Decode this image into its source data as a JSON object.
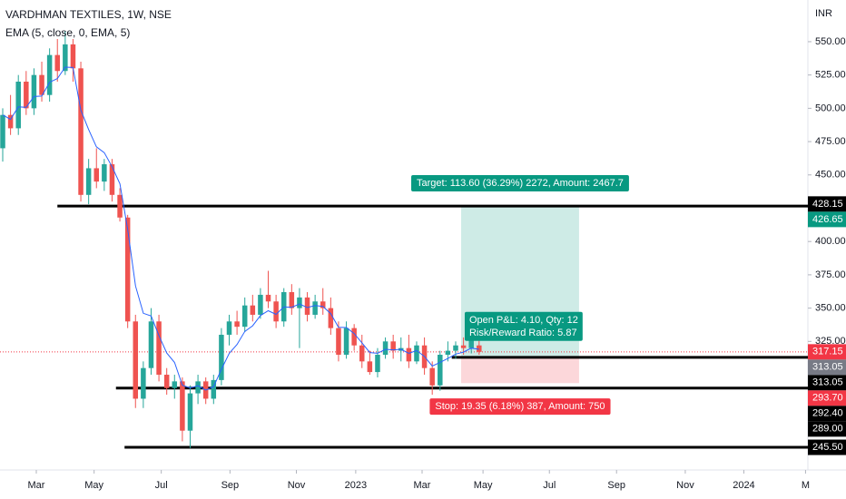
{
  "chart_data": {
    "type": "candlestick",
    "title": "VARDHMAN TEXTILES, 1W, NSE",
    "indicator": "EMA (5, close, 0, EMA, 5)",
    "currency": "INR",
    "up_color": "#26a69a",
    "down_color": "#ef5350",
    "ema_color": "#2962ff",
    "candles": [
      [
        470,
        500,
        460,
        495
      ],
      [
        495,
        510,
        480,
        485
      ],
      [
        485,
        525,
        480,
        520
      ],
      [
        520,
        528,
        495,
        500
      ],
      [
        500,
        530,
        495,
        525
      ],
      [
        525,
        535,
        505,
        510
      ],
      [
        510,
        545,
        505,
        540
      ],
      [
        540,
        552,
        520,
        528
      ],
      [
        528,
        558,
        525,
        548
      ],
      [
        548,
        552,
        520,
        530
      ],
      [
        530,
        535,
        430,
        435
      ],
      [
        435,
        462,
        428,
        455
      ],
      [
        455,
        470,
        440,
        445
      ],
      [
        445,
        462,
        438,
        458
      ],
      [
        458,
        462,
        430,
        435
      ],
      [
        435,
        440,
        415,
        418
      ],
      [
        418,
        420,
        335,
        340
      ],
      [
        340,
        345,
        275,
        282
      ],
      [
        282,
        310,
        275,
        305
      ],
      [
        305,
        350,
        300,
        340
      ],
      [
        340,
        345,
        295,
        300
      ],
      [
        300,
        305,
        285,
        290
      ],
      [
        290,
        300,
        282,
        295
      ],
      [
        295,
        298,
        250,
        258
      ],
      [
        258,
        292,
        245,
        286
      ],
      [
        286,
        300,
        278,
        295
      ],
      [
        295,
        298,
        278,
        282
      ],
      [
        282,
        300,
        278,
        296
      ],
      [
        296,
        335,
        292,
        330
      ],
      [
        330,
        345,
        322,
        340
      ],
      [
        340,
        348,
        330,
        336
      ],
      [
        336,
        358,
        332,
        352
      ],
      [
        352,
        360,
        340,
        345
      ],
      [
        345,
        365,
        342,
        360
      ],
      [
        360,
        378,
        350,
        355
      ],
      [
        355,
        360,
        335,
        340
      ],
      [
        340,
        365,
        336,
        362
      ],
      [
        362,
        368,
        345,
        350
      ],
      [
        350,
        365,
        320,
        358
      ],
      [
        358,
        362,
        340,
        345
      ],
      [
        345,
        360,
        342,
        355
      ],
      [
        355,
        365,
        345,
        350
      ],
      [
        350,
        358,
        330,
        335
      ],
      [
        335,
        340,
        310,
        315
      ],
      [
        315,
        340,
        312,
        335
      ],
      [
        335,
        338,
        318,
        322
      ],
      [
        322,
        330,
        305,
        310
      ],
      [
        310,
        318,
        300,
        302
      ],
      [
        302,
        320,
        298,
        315
      ],
      [
        315,
        328,
        312,
        325
      ],
      [
        325,
        330,
        312,
        318
      ],
      [
        318,
        328,
        310,
        320
      ],
      [
        320,
        330,
        305,
        310
      ],
      [
        310,
        325,
        308,
        322
      ],
      [
        322,
        328,
        300,
        305
      ],
      [
        305,
        310,
        285,
        292
      ],
      [
        292,
        318,
        288,
        315
      ],
      [
        315,
        325,
        310,
        318
      ],
      [
        318,
        325,
        312,
        322
      ],
      [
        322,
        328,
        315,
        320
      ],
      [
        320,
        330,
        316,
        326
      ],
      [
        322,
        326,
        315,
        317.15
      ]
    ],
    "ema": [
      495,
      491.7,
      501.1,
      500.7,
      508.8,
      509.2,
      519.5,
      522.3,
      530.9,
      530.6,
      498.7,
      484.1,
      471.1,
      466.7,
      456.1,
      443.4,
      408.9,
      366.6,
      346.1,
      344.1,
      329.4,
      316.3,
      309.2,
      292.1,
      290.1,
      291.7,
      288.5,
      291.0,
      304.0,
      316.0,
      322.7,
      332.5,
      336.7,
      344.4,
      348.0,
      345.3,
      350.9,
      350.6,
      353.1,
      350.4,
      351.9,
      351.3,
      345.9,
      335.6,
      335.4,
      330.9,
      323.9,
      316.6,
      316.1,
      319.1,
      318.7,
      319.1,
      316.1,
      318.1,
      313.7,
      306.5,
      309.3,
      312.2,
      315.5,
      317.0,
      320.0,
      319.1
    ],
    "xlim": [
      -0.35,
      103.1
    ],
    "xticks": [
      {
        "value": 4.3,
        "label": "Mar"
      },
      {
        "value": 11.7,
        "label": "May"
      },
      {
        "value": 20.3,
        "label": "Jul"
      },
      {
        "value": 29.1,
        "label": "Sep"
      },
      {
        "value": 37.6,
        "label": "Nov"
      },
      {
        "value": 45.2,
        "label": "2023"
      },
      {
        "value": 53.7,
        "label": "Mar"
      },
      {
        "value": 61.5,
        "label": "May"
      },
      {
        "value": 70,
        "label": "Jul"
      },
      {
        "value": 78.6,
        "label": "Sep"
      },
      {
        "value": 87.4,
        "label": "Nov"
      },
      {
        "value": 94.9,
        "label": "2024"
      },
      {
        "value": 102.8,
        "label": "M"
      }
    ],
    "ylim": [
      228.5,
      581.3
    ],
    "yticks": [
      {
        "value": 550,
        "label": "550.00"
      },
      {
        "value": 525,
        "label": "525.00"
      },
      {
        "value": 500,
        "label": "500.00"
      },
      {
        "value": 475,
        "label": "475.00"
      },
      {
        "value": 450,
        "label": "450.00"
      },
      {
        "value": 400,
        "label": "400.00"
      },
      {
        "value": 375,
        "label": "375.00"
      },
      {
        "value": 350,
        "label": "350.00"
      },
      {
        "value": 325,
        "label": "325.00"
      }
    ],
    "horizontal_lines": [
      {
        "value": 426.65,
        "from": 7
      },
      {
        "value": 313.05,
        "from": 57.5
      },
      {
        "value": 290,
        "from": 14.5
      },
      {
        "value": 245.5,
        "from": 15.6
      }
    ],
    "position": {
      "entry": 313.05,
      "target": 426.65,
      "stop": 293.7,
      "from": 58.7,
      "to": 73.8,
      "target_label": "Target: 113.60 (36.29%) 2272, Amount: 2467.7",
      "pnl_label": "Open P&L: 4.10, Qty: 12",
      "ratio_label": "Risk/Reward Ratio: 5.87",
      "stop_label": "Stop: 19.35 (6.18%) 387, Amount: 750"
    },
    "price_labels": [
      {
        "value": 428.15,
        "label": "428.15",
        "color": "#000000"
      },
      {
        "value": 426.65,
        "label": "426.65",
        "color": "#089981"
      },
      {
        "value": 317.15,
        "label": "317.15",
        "color": "#f23645"
      },
      {
        "value": 313.05,
        "label": "313.05",
        "color": "#787b86"
      },
      {
        "value": 313.05,
        "label": "313.05",
        "color": "#000000"
      },
      {
        "value": 293.7,
        "label": "293.70",
        "color": "#f23645"
      },
      {
        "value": 292.4,
        "label": "292.40",
        "color": "#000000"
      },
      {
        "value": 289.0,
        "label": "289.00",
        "color": "#000000"
      },
      {
        "value": 245.5,
        "label": "245.50",
        "color": "#000000"
      }
    ]
  }
}
